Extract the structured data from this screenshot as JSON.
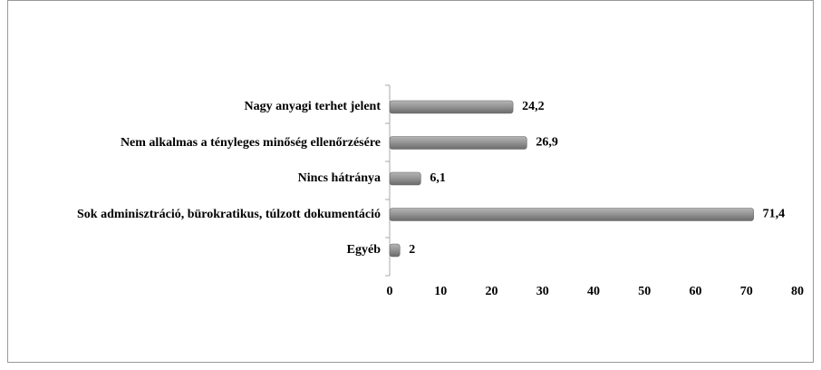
{
  "chart_data": {
    "type": "barh",
    "categories": [
      "Nagy anyagi terhet jelent",
      "Nem alkalmas a tényleges minőség ellenőrzésére",
      "Nincs hátránya",
      "Sok adminisztráció, bürokratikus, túlzott dokumentáció",
      "Egyéb"
    ],
    "values": [
      24.2,
      26.9,
      6.1,
      71.4,
      2
    ],
    "value_labels": [
      "24,2",
      "26,9",
      "6,1",
      "71,4",
      "2"
    ],
    "color": "#8c8c8c",
    "xlim": [
      0,
      80
    ],
    "xticks": [
      0,
      10,
      20,
      30,
      40,
      50,
      60,
      70,
      80
    ],
    "grid": false
  }
}
